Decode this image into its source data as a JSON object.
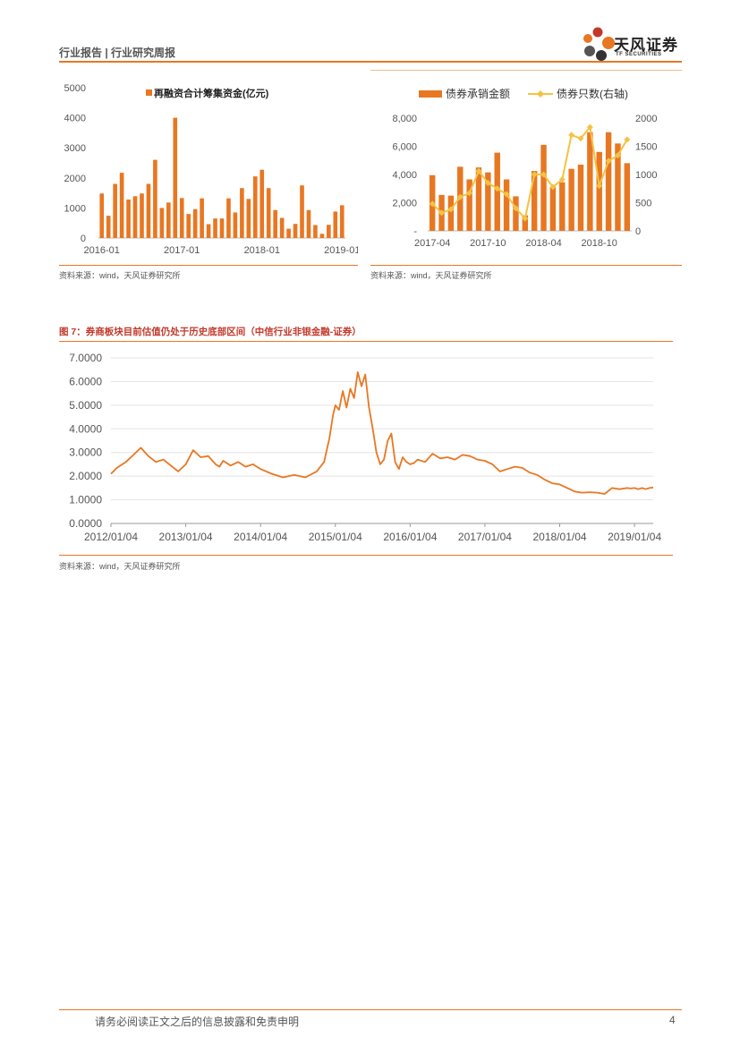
{
  "header": {
    "title": "行业报告 | 行业研究周报",
    "logo_cn": "天风证券",
    "logo_en": "TF SECURITIES",
    "accent": "#e87722"
  },
  "source_text": "资料来源：wind，天风证券研究所",
  "figure7_title": "图 7：券商板块目前估值仍处于历史底部区间（中信行业非银金融-证券）",
  "footer": {
    "disclaimer": "请务必阅读正文之后的信息披露和免责申明",
    "page": "4"
  },
  "chart_data": [
    {
      "id": "refinancing",
      "type": "bar",
      "legend": "再融资合计筹集资金(亿元)",
      "color": "#e87722",
      "ylim": [
        0,
        5000
      ],
      "yticks": [
        "5000",
        "4000",
        "3000",
        "2000",
        "1000",
        "0"
      ],
      "xticks": [
        "2016-01",
        "2017-01",
        "2018-01",
        "2019-01"
      ],
      "values": [
        1480,
        740,
        1800,
        2170,
        1280,
        1390,
        1480,
        1800,
        2600,
        1000,
        1180,
        4000,
        1330,
        800,
        960,
        1320,
        460,
        650,
        650,
        1320,
        850,
        1660,
        1300,
        2050,
        2270,
        1660,
        930,
        670,
        310,
        470,
        1750,
        930,
        430,
        140,
        440,
        880,
        1090
      ]
    },
    {
      "id": "bond-underwriting",
      "type": "bar+line",
      "legend": [
        "债券承销金额",
        "债券只数(右轴)"
      ],
      "bar_color": "#e87722",
      "line_color": "#f5c242",
      "ylim_left": [
        0,
        8000
      ],
      "ylim_right": [
        0,
        2000
      ],
      "yticks_left": [
        "8,000",
        "6,000",
        "4,000",
        "2,000",
        "-"
      ],
      "yticks_right": [
        "2000",
        "1500",
        "1000",
        "500",
        "0"
      ],
      "xticks": [
        "2017-04",
        "2017-10",
        "2018-04",
        "2018-10"
      ],
      "bars": [
        3950,
        2550,
        2500,
        4550,
        3650,
        4500,
        4150,
        5550,
        3650,
        2450,
        1100,
        4250,
        6100,
        3100,
        3450,
        4400,
        4700,
        7000,
        5600,
        7000,
        6200,
        4800
      ],
      "line": [
        480,
        320,
        380,
        600,
        670,
        1060,
        850,
        750,
        650,
        400,
        220,
        1000,
        1000,
        780,
        910,
        1700,
        1640,
        1840,
        800,
        1240,
        1340,
        1620
      ]
    },
    {
      "id": "pb-valuation",
      "type": "line",
      "title": "图 7：券商板块目前估值仍处于历史底部区间（中信行业非银金融-证券）",
      "color": "#e87722",
      "ylim": [
        0,
        7
      ],
      "yticks": [
        "7.0000",
        "6.0000",
        "5.0000",
        "4.0000",
        "3.0000",
        "2.0000",
        "1.0000",
        "0.0000"
      ],
      "xticks": [
        "2012/01/04",
        "2013/01/04",
        "2014/01/04",
        "2015/01/04",
        "2016/01/04",
        "2017/01/04",
        "2018/01/04",
        "2019/01/04"
      ],
      "x": [
        2012.0,
        2012.08,
        2012.2,
        2012.3,
        2012.4,
        2012.5,
        2012.6,
        2012.7,
        2012.8,
        2012.9,
        2013.0,
        2013.1,
        2013.2,
        2013.3,
        2013.4,
        2013.45,
        2013.5,
        2013.6,
        2013.7,
        2013.8,
        2013.9,
        2014.0,
        2014.15,
        2014.3,
        2014.45,
        2014.6,
        2014.75,
        2014.85,
        2014.92,
        2014.97,
        2015.0,
        2015.05,
        2015.1,
        2015.15,
        2015.2,
        2015.25,
        2015.3,
        2015.35,
        2015.4,
        2015.45,
        2015.5,
        2015.55,
        2015.6,
        2015.65,
        2015.7,
        2015.75,
        2015.8,
        2015.85,
        2015.9,
        2015.95,
        2016.0,
        2016.05,
        2016.1,
        2016.2,
        2016.3,
        2016.4,
        2016.5,
        2016.6,
        2016.7,
        2016.8,
        2016.9,
        2017.0,
        2017.1,
        2017.2,
        2017.3,
        2017.4,
        2017.5,
        2017.6,
        2017.7,
        2017.8,
        2017.9,
        2018.0,
        2018.1,
        2018.2,
        2018.3,
        2018.4,
        2018.5,
        2018.6,
        2018.7,
        2018.8,
        2018.9,
        2018.95,
        2019.0,
        2019.05,
        2019.1,
        2019.15,
        2019.2,
        2019.25
      ],
      "y": [
        2.1,
        2.35,
        2.6,
        2.9,
        3.2,
        2.85,
        2.6,
        2.7,
        2.45,
        2.2,
        2.5,
        3.1,
        2.8,
        2.85,
        2.5,
        2.4,
        2.65,
        2.45,
        2.6,
        2.4,
        2.5,
        2.3,
        2.1,
        1.95,
        2.05,
        1.95,
        2.2,
        2.6,
        3.6,
        4.6,
        5.0,
        4.8,
        5.6,
        4.9,
        5.7,
        5.3,
        6.4,
        5.8,
        6.3,
        4.9,
        4.0,
        3.0,
        2.5,
        2.7,
        3.5,
        3.8,
        2.6,
        2.3,
        2.8,
        2.6,
        2.5,
        2.55,
        2.7,
        2.6,
        2.95,
        2.75,
        2.8,
        2.7,
        2.9,
        2.85,
        2.7,
        2.65,
        2.5,
        2.2,
        2.3,
        2.4,
        2.35,
        2.15,
        2.05,
        1.85,
        1.7,
        1.65,
        1.5,
        1.35,
        1.3,
        1.32,
        1.3,
        1.25,
        1.5,
        1.45,
        1.5,
        1.48,
        1.5,
        1.45,
        1.5,
        1.45,
        1.5,
        1.52
      ]
    }
  ]
}
